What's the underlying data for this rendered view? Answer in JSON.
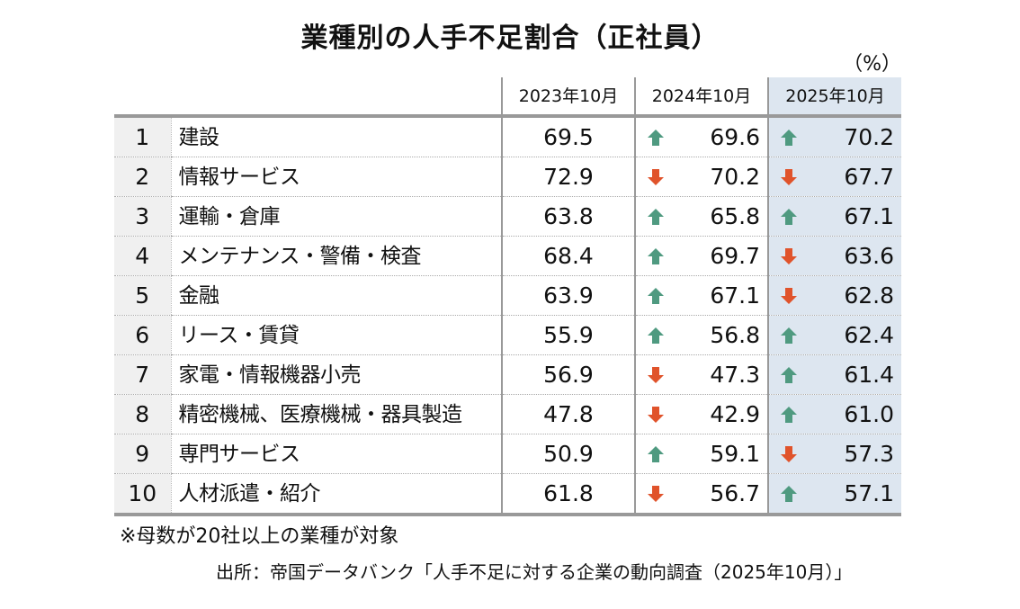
{
  "title": "業種別の人手不足割合（正社員）",
  "unit": "（%）",
  "colors": {
    "up": "#4f9a80",
    "down": "#e0532b",
    "highlight": "#dde6f0"
  },
  "chart_data": {
    "type": "table",
    "columns": [
      "2023年10月",
      "2024年10月",
      "2025年10月"
    ],
    "rows": [
      {
        "rank": "1",
        "industry": "建設",
        "v2023": "69.5",
        "v2024": "69.6",
        "t2024": "up",
        "v2025": "70.2",
        "t2025": "up"
      },
      {
        "rank": "2",
        "industry": "情報サービス",
        "v2023": "72.9",
        "v2024": "70.2",
        "t2024": "down",
        "v2025": "67.7",
        "t2025": "down"
      },
      {
        "rank": "3",
        "industry": "運輸・倉庫",
        "v2023": "63.8",
        "v2024": "65.8",
        "t2024": "up",
        "v2025": "67.1",
        "t2025": "up"
      },
      {
        "rank": "4",
        "industry": "メンテナンス・警備・検査",
        "v2023": "68.4",
        "v2024": "69.7",
        "t2024": "up",
        "v2025": "63.6",
        "t2025": "down"
      },
      {
        "rank": "5",
        "industry": "金融",
        "v2023": "63.9",
        "v2024": "67.1",
        "t2024": "up",
        "v2025": "62.8",
        "t2025": "down"
      },
      {
        "rank": "6",
        "industry": "リース・賃貸",
        "v2023": "55.9",
        "v2024": "56.8",
        "t2024": "up",
        "v2025": "62.4",
        "t2025": "up"
      },
      {
        "rank": "7",
        "industry": "家電・情報機器小売",
        "v2023": "56.9",
        "v2024": "47.3",
        "t2024": "down",
        "v2025": "61.4",
        "t2025": "up"
      },
      {
        "rank": "8",
        "industry": "精密機械、医療機械・器具製造",
        "v2023": "47.8",
        "v2024": "42.9",
        "t2024": "down",
        "v2025": "61.0",
        "t2025": "up"
      },
      {
        "rank": "9",
        "industry": "専門サービス",
        "v2023": "50.9",
        "v2024": "59.1",
        "t2024": "up",
        "v2025": "57.3",
        "t2025": "down"
      },
      {
        "rank": "10",
        "industry": "人材派遣・紹介",
        "v2023": "61.8",
        "v2024": "56.7",
        "t2024": "down",
        "v2025": "57.1",
        "t2025": "up"
      }
    ]
  },
  "note": "※母数が20社以上の業種が対象",
  "source": "出所：帝国データバンク「人手不足に対する企業の動向調査（2025年10月）」"
}
